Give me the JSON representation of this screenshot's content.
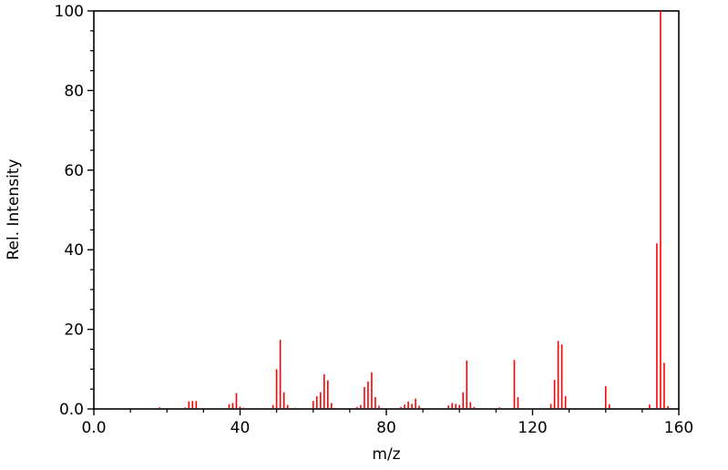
{
  "chart_data": {
    "type": "bar",
    "subtype": "mass_spectrum_stick_plot",
    "title": "",
    "xlabel": "m/z",
    "ylabel": "Rel. Intensity",
    "xlim": [
      0,
      160
    ],
    "ylim": [
      0,
      100
    ],
    "grid": false,
    "legend": "none",
    "x_tick_labels": [
      "0.0",
      "40",
      "80",
      "120",
      "160"
    ],
    "x_major_tick_values": [
      0,
      40,
      80,
      120,
      160
    ],
    "x_minor_tick_step": 10,
    "y_tick_labels": [
      "0.0",
      "20",
      "40",
      "60",
      "80",
      "100"
    ],
    "y_major_tick_values": [
      0,
      20,
      40,
      60,
      80,
      100
    ],
    "y_minor_tick_step": 5,
    "colors": {
      "peak": "#ff0000",
      "axis": "#000000",
      "text": "#000000",
      "background": "#ffffff"
    },
    "peaks_format": [
      "mz",
      "rel_intensity"
    ],
    "peaks": [
      [
        18,
        0.4
      ],
      [
        25,
        0.4
      ],
      [
        26,
        1.9
      ],
      [
        27,
        2.0
      ],
      [
        28,
        2.0
      ],
      [
        37,
        1.2
      ],
      [
        38,
        1.5
      ],
      [
        39,
        4.0
      ],
      [
        40,
        0.6
      ],
      [
        41,
        0.3
      ],
      [
        49,
        1.0
      ],
      [
        50,
        10.0
      ],
      [
        51,
        17.4
      ],
      [
        52,
        4.2
      ],
      [
        53,
        1.0
      ],
      [
        55,
        0.3
      ],
      [
        60,
        2.0
      ],
      [
        61,
        3.2
      ],
      [
        62,
        4.2
      ],
      [
        63,
        8.7
      ],
      [
        64,
        7.2
      ],
      [
        65,
        1.5
      ],
      [
        72,
        0.5
      ],
      [
        73,
        1.0
      ],
      [
        74,
        5.5
      ],
      [
        75,
        6.9
      ],
      [
        76,
        9.2
      ],
      [
        77,
        3.0
      ],
      [
        78,
        0.8
      ],
      [
        84,
        0.5
      ],
      [
        85,
        1.1
      ],
      [
        86,
        1.9
      ],
      [
        87,
        1.3
      ],
      [
        88,
        2.6
      ],
      [
        89,
        0.8
      ],
      [
        97,
        0.9
      ],
      [
        98,
        1.5
      ],
      [
        99,
        1.3
      ],
      [
        100,
        1.0
      ],
      [
        101,
        4.2
      ],
      [
        102,
        12.2
      ],
      [
        103,
        1.7
      ],
      [
        104,
        0.5
      ],
      [
        111,
        0.4
      ],
      [
        115,
        12.3
      ],
      [
        116,
        3.0
      ],
      [
        125,
        1.3
      ],
      [
        126,
        7.3
      ],
      [
        127,
        17.1
      ],
      [
        128,
        16.2
      ],
      [
        129,
        3.2
      ],
      [
        140,
        5.7
      ],
      [
        141,
        1.2
      ],
      [
        152,
        1.1
      ],
      [
        154,
        41.6
      ],
      [
        155,
        100.0
      ],
      [
        156,
        11.6
      ],
      [
        157,
        0.7
      ]
    ]
  }
}
